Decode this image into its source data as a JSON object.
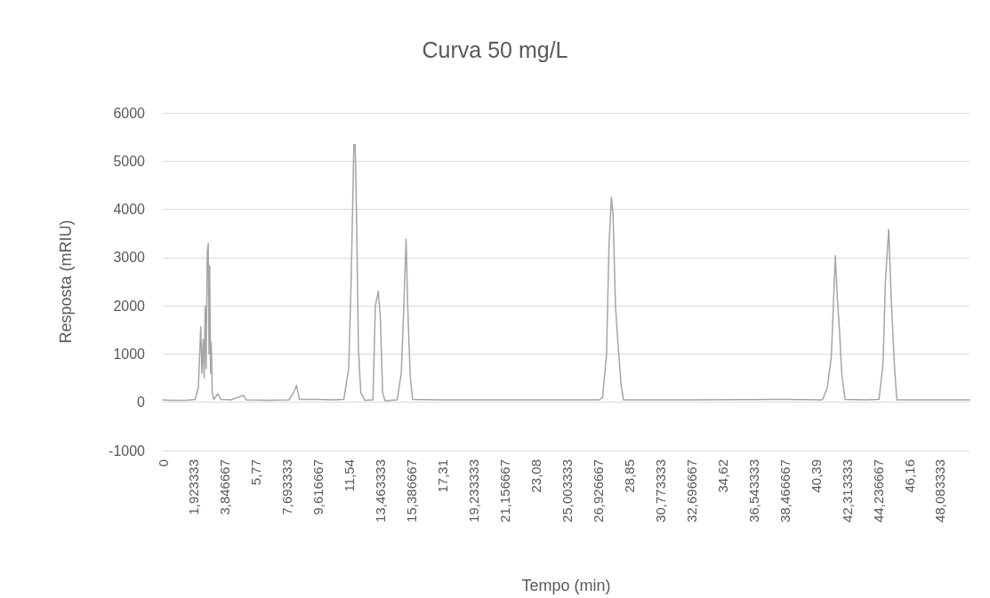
{
  "chart_data": {
    "type": "line",
    "title": "Curva 50 mg/L",
    "xlabel": "Tempo (min)",
    "ylabel": "Resposta (mRIU)",
    "series": [
      {
        "color": "#a5a5a5",
        "x": [
          0,
          0.5,
          1.0,
          1.5,
          2.0,
          2.2,
          2.35,
          2.42,
          2.5,
          2.56,
          2.62,
          2.68,
          2.75,
          2.81,
          2.86,
          2.9,
          2.96,
          3.0,
          3.06,
          3.15,
          3.4,
          3.6,
          4.2,
          5.0,
          5.15,
          6.5,
          7.8,
          8.1,
          8.27,
          8.45,
          9.5,
          10.5,
          11.2,
          11.5,
          11.65,
          11.82,
          11.9,
          12.0,
          12.1,
          12.25,
          12.5,
          13.0,
          13.15,
          13.33,
          13.45,
          13.6,
          13.75,
          14.5,
          14.75,
          14.9,
          15.05,
          15.15,
          15.3,
          15.45,
          17,
          22,
          27.0,
          27.2,
          27.45,
          27.6,
          27.75,
          27.85,
          28.0,
          28.15,
          28.35,
          28.5,
          33,
          38.5,
          40.8,
          41.1,
          41.35,
          41.6,
          41.72,
          41.85,
          42.0,
          42.2,
          43.5,
          44.3,
          44.55,
          44.7,
          44.9,
          45.05,
          45.25,
          45.4,
          49.9
        ],
        "values": [
          50,
          40,
          40,
          40,
          60,
          300,
          1567,
          600,
          1300,
          500,
          2000,
          700,
          3100,
          3292,
          1000,
          2825,
          600,
          1245,
          200,
          60,
          175,
          60,
          50,
          145,
          50,
          40,
          50,
          200,
          350,
          60,
          60,
          50,
          60,
          700,
          2500,
          5340,
          5340,
          3555,
          1100,
          200,
          40,
          50,
          2000,
          2300,
          1800,
          200,
          30,
          50,
          600,
          1890,
          3380,
          2000,
          570,
          60,
          50,
          50,
          50,
          100,
          1000,
          3250,
          4250,
          3900,
          2000,
          1240,
          345,
          50,
          50,
          60,
          50,
          300,
          940,
          3040,
          2160,
          1530,
          580,
          60,
          50,
          60,
          800,
          2520,
          3580,
          2190,
          790,
          50,
          50
        ]
      }
    ],
    "xlim": [
      0,
      49.9
    ],
    "xticks": [
      0,
      {
        "value": 1.923333,
        "label": "1,923333"
      },
      {
        "value": 3.846667,
        "label": "3,846667"
      },
      {
        "value": 5.77,
        "label": "5,77"
      },
      {
        "value": 7.693333,
        "label": "7,693333"
      },
      {
        "value": 9.616667,
        "label": "9,616667"
      },
      {
        "value": 11.54,
        "label": "11,54"
      },
      {
        "value": 13.463333,
        "label": "13,463333"
      },
      {
        "value": 15.386667,
        "label": "15,386667"
      },
      {
        "value": 17.31,
        "label": "17,31"
      },
      {
        "value": 19.233333,
        "label": "19,233333"
      },
      {
        "value": 21.156667,
        "label": "21,156667"
      },
      {
        "value": 23.08,
        "label": "23,08"
      },
      {
        "value": 25.003333,
        "label": "25,003333"
      },
      {
        "value": 26.926667,
        "label": "26,926667"
      },
      {
        "value": 28.85,
        "label": "28,85"
      },
      {
        "value": 30.773333,
        "label": "30,773333"
      },
      {
        "value": 32.696667,
        "label": "32,696667"
      },
      {
        "value": 34.62,
        "label": "34,62"
      },
      {
        "value": 36.543333,
        "label": "36,543333"
      },
      {
        "value": 38.466667,
        "label": "38,466667"
      },
      {
        "value": 40.39,
        "label": "40,39"
      },
      {
        "value": 42.313333,
        "label": "42,313333"
      },
      {
        "value": 44.236667,
        "label": "44,236667"
      },
      {
        "value": 46.16,
        "label": "46,16"
      },
      {
        "value": 48.083333,
        "label": "48,083333"
      }
    ],
    "ylim": [
      -1000,
      6000
    ],
    "yticks": [
      -1000,
      0,
      1000,
      2000,
      3000,
      4000,
      5000,
      6000
    ],
    "grid": "y",
    "marker": "none",
    "line_style": "solid"
  }
}
